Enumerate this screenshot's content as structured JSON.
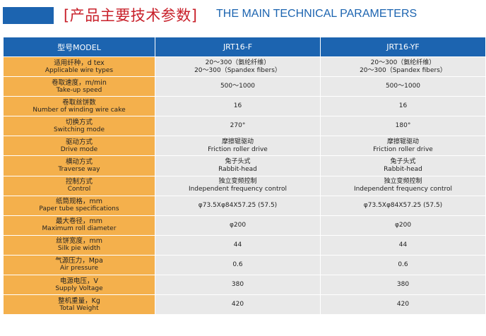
{
  "header": {
    "title_cn": "[产品主要技术参数]",
    "title_en": "THE MAIN TECHNICAL PARAMETERS",
    "bar_color": "#1c64b0"
  },
  "table": {
    "columns": [
      "型号MODEL",
      "JRT16-F",
      "JRT16-YF"
    ],
    "rows": [
      {
        "label_cn": "适用纤种，d tex",
        "label_en": "Applicable wire types",
        "col1": [
          "20～300（氨纶纤维）",
          "20～300（Spandex fibers）"
        ],
        "col2": [
          "20～300（氨纶纤维）",
          "20～300（Spandex fibers）"
        ]
      },
      {
        "label_cn": "卷取速度，m/min",
        "label_en": "Take-up speed",
        "col1": [
          "500～1000"
        ],
        "col2": [
          "500～1000"
        ]
      },
      {
        "label_cn": "卷取丝饼数",
        "label_en": "Number of winding wire cake",
        "col1": [
          "16"
        ],
        "col2": [
          "16"
        ]
      },
      {
        "label_cn": "切换方式",
        "label_en": "Switching mode",
        "col1": [
          "270°"
        ],
        "col2": [
          "180°"
        ]
      },
      {
        "label_cn": "驱动方式",
        "label_en": "Drive mode",
        "col1": [
          "摩擦辊驱动",
          "Friction roller drive"
        ],
        "col2": [
          "摩擦辊驱动",
          "Friction roller drive"
        ]
      },
      {
        "label_cn": "横动方式",
        "label_en": "Traverse way",
        "col1": [
          "兔子头式",
          "Rabbit-head"
        ],
        "col2": [
          "兔子头式",
          "Rabbit-head"
        ]
      },
      {
        "label_cn": "控制方式",
        "label_en": "Control",
        "col1": [
          "独立变频控制",
          "Independent frequency control"
        ],
        "col2": [
          "独立变频控制",
          "Independent frequency control"
        ]
      },
      {
        "label_cn": "纸筒规格，mm",
        "label_en": "Paper tube specifications",
        "col1": [
          "φ73.5Xφ84X57.25 (57.5)"
        ],
        "col2": [
          "φ73.5Xφ84X57.25 (57.5)"
        ]
      },
      {
        "label_cn": "最大卷径，mm",
        "label_en": "Maximum roll diameter",
        "col1": [
          "φ200"
        ],
        "col2": [
          "φ200"
        ]
      },
      {
        "label_cn": "丝饼宽度，mm",
        "label_en": "Silk pie width",
        "col1": [
          "44"
        ],
        "col2": [
          "44"
        ]
      },
      {
        "label_cn": "气源压力，Mpa",
        "label_en": "Air pressure",
        "col1": [
          "0.6"
        ],
        "col2": [
          "0.6"
        ]
      },
      {
        "label_cn": "电源电压，V",
        "label_en": "Supply Voltage",
        "col1": [
          "380"
        ],
        "col2": [
          "380"
        ]
      },
      {
        "label_cn": "整机重量，Kg",
        "label_en": "Total Weight",
        "col1": [
          "420"
        ],
        "col2": [
          "420"
        ]
      }
    ]
  },
  "colors": {
    "header_blue": "#1c64b0",
    "label_orange": "#f4b04c",
    "value_gray": "#e9e9e9",
    "title_red": "#c8202a"
  }
}
